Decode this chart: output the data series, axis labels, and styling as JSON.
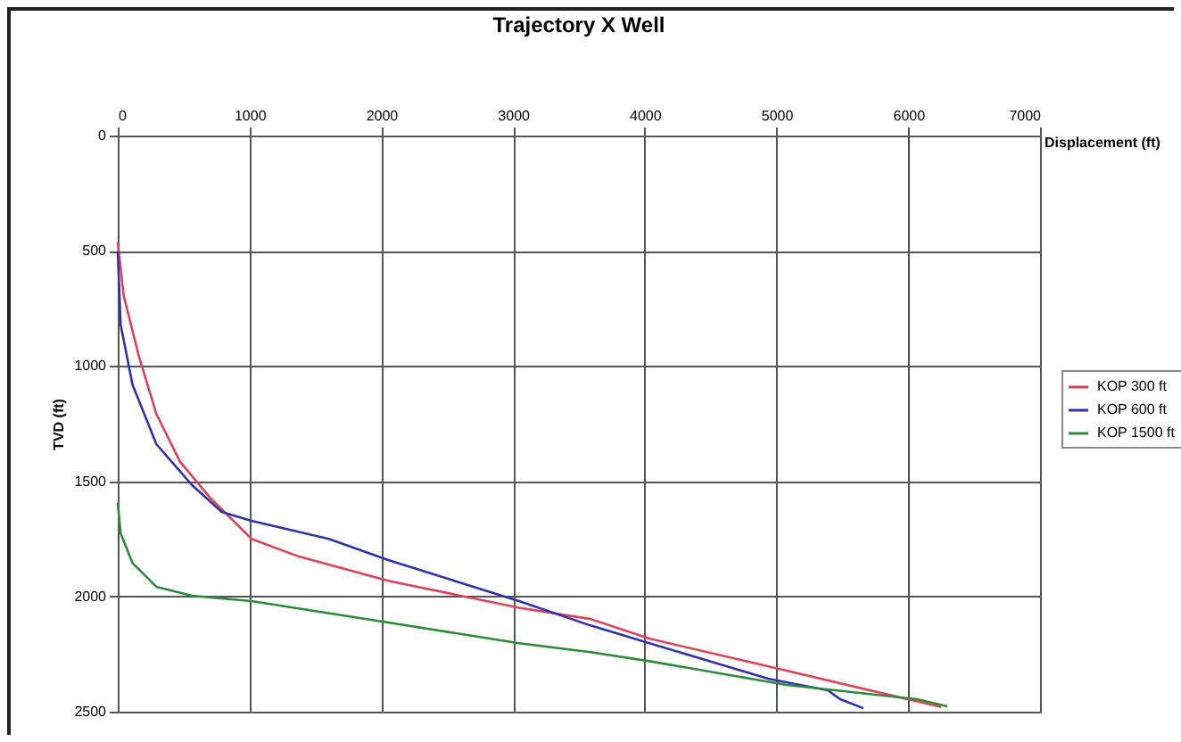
{
  "chart_data": {
    "type": "line",
    "title": "Trajectory X Well",
    "xlabel": "Displacement (ft)",
    "ylabel": "TVD (ft)",
    "xlim": [
      0,
      7000
    ],
    "xticks": [
      0,
      1000,
      2000,
      3000,
      4000,
      5000,
      6000,
      7000
    ],
    "ylim": [
      2500,
      0
    ],
    "yticks": [
      0,
      500,
      1000,
      1500,
      2000,
      2500
    ],
    "grid": true,
    "legend": "right",
    "line_style": "solid",
    "marker": "none",
    "series": [
      {
        "name": "KOP 300 ft",
        "color": "#e0405a",
        "x": [
          0,
          45,
          158,
          293,
          474,
          700,
          1015,
          1376,
          2053,
          3046,
          3588,
          4035,
          5077,
          6250
        ],
        "values": [
          462,
          694,
          952,
          1208,
          1416,
          1571,
          1750,
          1827,
          1932,
          2049,
          2098,
          2183,
          2322,
          2480
        ]
      },
      {
        "name": "KOP 600 ft",
        "color": "#3030b0",
        "x": [
          0,
          22,
          112,
          293,
          564,
          789,
          1015,
          1602,
          2053,
          3046,
          3588,
          4035,
          4942,
          5389,
          5483,
          5659
        ],
        "values": [
          500,
          820,
          1081,
          1339,
          1517,
          1633,
          1672,
          1750,
          1842,
          2020,
          2126,
          2203,
          2358,
          2407,
          2446,
          2485
        ]
      },
      {
        "name": "KOP 1500 ft",
        "color": "#2e8b3a",
        "x": [
          0,
          22,
          112,
          293,
          564,
          1015,
          2053,
          3046,
          3588,
          4035,
          5077,
          6066,
          6296
        ],
        "values": [
          1594,
          1726,
          1855,
          1958,
          1997,
          2020,
          2113,
          2203,
          2242,
          2281,
          2384,
          2446,
          2477
        ]
      }
    ]
  }
}
